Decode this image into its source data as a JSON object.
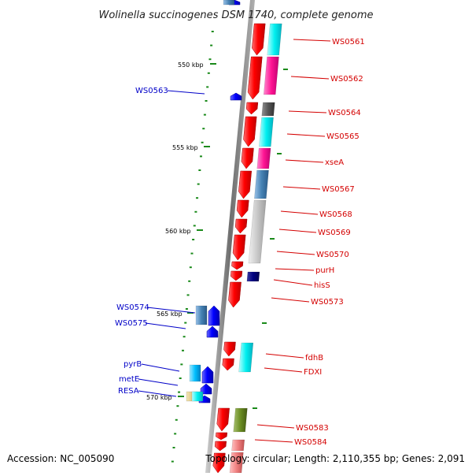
{
  "title": "Wolinella succinogenes DSM 1740, complete genome",
  "footer": {
    "accession": "Accession: NC_005090",
    "topology": "Topology: circular; Length: 2,110,355 bp; Genes: 2,091"
  },
  "colors": {
    "forward_label": "#d40000",
    "reverse_label": "#0000c8",
    "backbone": "#7a7a7a",
    "tick": "#1a8a1a"
  },
  "scale_labels": [
    "550 kbp",
    "555 kbp",
    "560 kbp",
    "565 kbp",
    "570 kbp"
  ],
  "right_labels": [
    "WS0561",
    "WS0562",
    "WS0564",
    "WS0565",
    "xseA",
    "WS0567",
    "WS0568",
    "WS0569",
    "WS0570",
    "purH",
    "hisS",
    "WS0573",
    "fdhB",
    "FDXI",
    "WS0583",
    "WS0584"
  ],
  "left_labels": [
    "WS0563",
    "WS0574",
    "WS0575",
    "pyrB",
    "metE",
    "RESA"
  ]
}
